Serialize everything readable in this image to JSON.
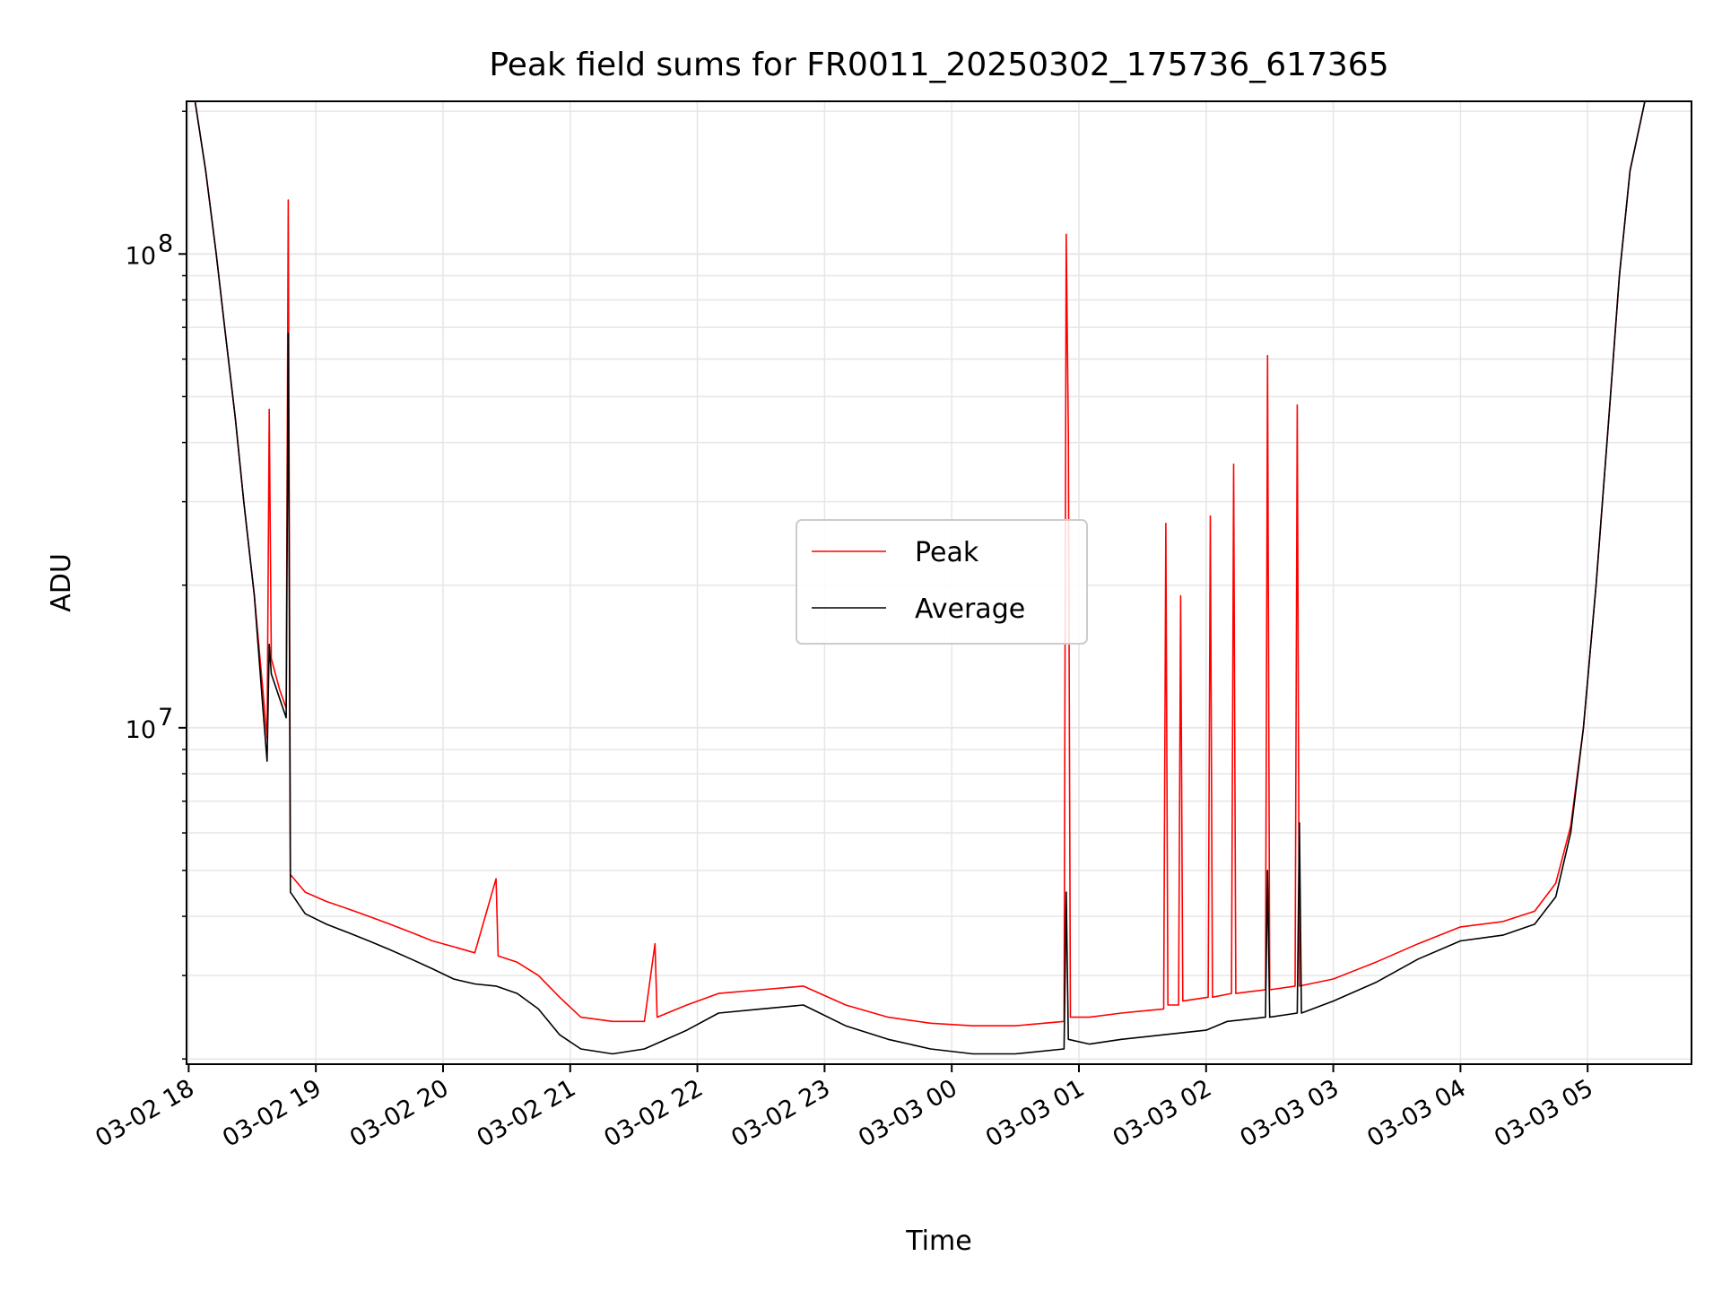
{
  "chart_data": {
    "type": "line",
    "title": "Peak field sums for FR0011_20250302_175736_617365",
    "xlabel": "Time",
    "ylabel": "ADU",
    "yscale": "log",
    "xlim": [
      "2025-03-02T17:59",
      "2025-03-03T05:49"
    ],
    "ylim": [
      1950000,
      210000000
    ],
    "grid": "major and minor",
    "legend_position": "center",
    "x_ticks": [
      {
        "t": "2025-03-02T18:00",
        "label": "03-02 18"
      },
      {
        "t": "2025-03-02T19:00",
        "label": "03-02 19"
      },
      {
        "t": "2025-03-02T20:00",
        "label": "03-02 20"
      },
      {
        "t": "2025-03-02T21:00",
        "label": "03-02 21"
      },
      {
        "t": "2025-03-02T22:00",
        "label": "03-02 22"
      },
      {
        "t": "2025-03-02T23:00",
        "label": "03-02 23"
      },
      {
        "t": "2025-03-03T00:00",
        "label": "03-03 00"
      },
      {
        "t": "2025-03-03T01:00",
        "label": "03-03 01"
      },
      {
        "t": "2025-03-03T02:00",
        "label": "03-03 02"
      },
      {
        "t": "2025-03-03T03:00",
        "label": "03-03 03"
      },
      {
        "t": "2025-03-03T04:00",
        "label": "03-03 04"
      },
      {
        "t": "2025-03-03T05:00",
        "label": "03-03 05"
      }
    ],
    "y_ticks": [
      {
        "value": 10000000,
        "base": "10",
        "exp": "7"
      },
      {
        "value": 100000000,
        "base": "10",
        "exp": "8"
      }
    ],
    "series": [
      {
        "name": "Peak",
        "color": "#ff0000",
        "points": [
          [
            "2025-03-02T18:03",
            210000000
          ],
          [
            "2025-03-02T18:08",
            150000000
          ],
          [
            "2025-03-02T18:13",
            100000000
          ],
          [
            "2025-03-02T18:17",
            70000000
          ],
          [
            "2025-03-02T18:22",
            45000000
          ],
          [
            "2025-03-02T18:26",
            30000000
          ],
          [
            "2025-03-02T18:31",
            19000000
          ],
          [
            "2025-03-02T18:35",
            12000000
          ],
          [
            "2025-03-02T18:37",
            9500000
          ],
          [
            "2025-03-02T18:38",
            47000000
          ],
          [
            "2025-03-02T18:39",
            14000000
          ],
          [
            "2025-03-02T18:43",
            12000000
          ],
          [
            "2025-03-02T18:46",
            11000000
          ],
          [
            "2025-03-02T18:47",
            130000000
          ],
          [
            "2025-03-02T18:48",
            4900000
          ],
          [
            "2025-03-02T18:55",
            4500000
          ],
          [
            "2025-03-02T19:05",
            4300000
          ],
          [
            "2025-03-02T19:15",
            4150000
          ],
          [
            "2025-03-02T19:25",
            4000000
          ],
          [
            "2025-03-02T19:35",
            3850000
          ],
          [
            "2025-03-02T19:45",
            3700000
          ],
          [
            "2025-03-02T19:55",
            3550000
          ],
          [
            "2025-03-02T20:05",
            3450000
          ],
          [
            "2025-03-02T20:15",
            3350000
          ],
          [
            "2025-03-02T20:25",
            4800000
          ],
          [
            "2025-03-02T20:26",
            3300000
          ],
          [
            "2025-03-02T20:35",
            3200000
          ],
          [
            "2025-03-02T20:45",
            3000000
          ],
          [
            "2025-03-02T20:55",
            2700000
          ],
          [
            "2025-03-02T21:05",
            2450000
          ],
          [
            "2025-03-02T21:20",
            2400000
          ],
          [
            "2025-03-02T21:35",
            2400000
          ],
          [
            "2025-03-02T21:40",
            3500000
          ],
          [
            "2025-03-02T21:41",
            2450000
          ],
          [
            "2025-03-02T21:55",
            2600000
          ],
          [
            "2025-03-02T22:10",
            2750000
          ],
          [
            "2025-03-02T22:30",
            2800000
          ],
          [
            "2025-03-02T22:50",
            2850000
          ],
          [
            "2025-03-02T23:10",
            2600000
          ],
          [
            "2025-03-02T23:30",
            2450000
          ],
          [
            "2025-03-02T23:50",
            2380000
          ],
          [
            "2025-03-03T00:10",
            2350000
          ],
          [
            "2025-03-03T00:30",
            2350000
          ],
          [
            "2025-03-03T00:53",
            2400000
          ],
          [
            "2025-03-03T00:54",
            110000000
          ],
          [
            "2025-03-03T00:55",
            42000000
          ],
          [
            "2025-03-03T00:56",
            2450000
          ],
          [
            "2025-03-03T01:05",
            2450000
          ],
          [
            "2025-03-03T01:20",
            2500000
          ],
          [
            "2025-03-03T01:40",
            2550000
          ],
          [
            "2025-03-03T01:41",
            27000000
          ],
          [
            "2025-03-03T01:42",
            2600000
          ],
          [
            "2025-03-03T01:47",
            2600000
          ],
          [
            "2025-03-03T01:48",
            19000000
          ],
          [
            "2025-03-03T01:49",
            2650000
          ],
          [
            "2025-03-03T02:01",
            2700000
          ],
          [
            "2025-03-03T02:02",
            28000000
          ],
          [
            "2025-03-03T02:03",
            2700000
          ],
          [
            "2025-03-03T02:12",
            2750000
          ],
          [
            "2025-03-03T02:13",
            36000000
          ],
          [
            "2025-03-03T02:14",
            2750000
          ],
          [
            "2025-03-03T02:28",
            2800000
          ],
          [
            "2025-03-03T02:29",
            61000000
          ],
          [
            "2025-03-03T02:30",
            2800000
          ],
          [
            "2025-03-03T02:42",
            2850000
          ],
          [
            "2025-03-03T02:43",
            48000000
          ],
          [
            "2025-03-03T02:44",
            2850000
          ],
          [
            "2025-03-03T03:00",
            2950000
          ],
          [
            "2025-03-03T03:20",
            3200000
          ],
          [
            "2025-03-03T03:40",
            3500000
          ],
          [
            "2025-03-03T04:00",
            3800000
          ],
          [
            "2025-03-03T04:20",
            3900000
          ],
          [
            "2025-03-03T04:35",
            4100000
          ],
          [
            "2025-03-03T04:45",
            4700000
          ],
          [
            "2025-03-03T04:52",
            6200000
          ],
          [
            "2025-03-03T04:58",
            10000000
          ],
          [
            "2025-03-03T05:04",
            20000000
          ],
          [
            "2025-03-03T05:10",
            45000000
          ],
          [
            "2025-03-03T05:15",
            90000000
          ],
          [
            "2025-03-03T05:20",
            150000000
          ],
          [
            "2025-03-03T05:27",
            210000000
          ]
        ]
      },
      {
        "name": "Average",
        "color": "#000000",
        "points": [
          [
            "2025-03-02T18:03",
            210000000
          ],
          [
            "2025-03-02T18:08",
            150000000
          ],
          [
            "2025-03-02T18:13",
            100000000
          ],
          [
            "2025-03-02T18:17",
            70000000
          ],
          [
            "2025-03-02T18:22",
            45000000
          ],
          [
            "2025-03-02T18:26",
            30000000
          ],
          [
            "2025-03-02T18:31",
            19000000
          ],
          [
            "2025-03-02T18:35",
            11000000
          ],
          [
            "2025-03-02T18:37",
            8500000
          ],
          [
            "2025-03-02T18:38",
            15000000
          ],
          [
            "2025-03-02T18:39",
            13000000
          ],
          [
            "2025-03-02T18:43",
            11500000
          ],
          [
            "2025-03-02T18:46",
            10500000
          ],
          [
            "2025-03-02T18:47",
            68000000
          ],
          [
            "2025-03-02T18:48",
            4500000
          ],
          [
            "2025-03-02T18:55",
            4050000
          ],
          [
            "2025-03-02T19:05",
            3850000
          ],
          [
            "2025-03-02T19:15",
            3700000
          ],
          [
            "2025-03-02T19:25",
            3550000
          ],
          [
            "2025-03-02T19:35",
            3400000
          ],
          [
            "2025-03-02T19:45",
            3250000
          ],
          [
            "2025-03-02T19:55",
            3100000
          ],
          [
            "2025-03-02T20:05",
            2950000
          ],
          [
            "2025-03-02T20:15",
            2880000
          ],
          [
            "2025-03-02T20:25",
            2850000
          ],
          [
            "2025-03-02T20:35",
            2750000
          ],
          [
            "2025-03-02T20:45",
            2550000
          ],
          [
            "2025-03-02T20:55",
            2250000
          ],
          [
            "2025-03-02T21:05",
            2100000
          ],
          [
            "2025-03-02T21:20",
            2050000
          ],
          [
            "2025-03-02T21:35",
            2100000
          ],
          [
            "2025-03-02T21:55",
            2300000
          ],
          [
            "2025-03-02T22:10",
            2500000
          ],
          [
            "2025-03-02T22:30",
            2550000
          ],
          [
            "2025-03-02T22:50",
            2600000
          ],
          [
            "2025-03-02T23:10",
            2350000
          ],
          [
            "2025-03-02T23:30",
            2200000
          ],
          [
            "2025-03-02T23:50",
            2100000
          ],
          [
            "2025-03-03T00:10",
            2050000
          ],
          [
            "2025-03-03T00:30",
            2050000
          ],
          [
            "2025-03-03T00:53",
            2100000
          ],
          [
            "2025-03-03T00:54",
            4500000
          ],
          [
            "2025-03-03T00:55",
            2200000
          ],
          [
            "2025-03-03T01:05",
            2150000
          ],
          [
            "2025-03-03T01:20",
            2200000
          ],
          [
            "2025-03-03T01:40",
            2250000
          ],
          [
            "2025-03-03T02:00",
            2300000
          ],
          [
            "2025-03-03T02:10",
            2400000
          ],
          [
            "2025-03-03T02:28",
            2450000
          ],
          [
            "2025-03-03T02:29",
            5000000
          ],
          [
            "2025-03-03T02:30",
            2450000
          ],
          [
            "2025-03-03T02:43",
            2500000
          ],
          [
            "2025-03-03T02:44",
            6300000
          ],
          [
            "2025-03-03T02:45",
            2500000
          ],
          [
            "2025-03-03T03:00",
            2650000
          ],
          [
            "2025-03-03T03:20",
            2900000
          ],
          [
            "2025-03-03T03:40",
            3250000
          ],
          [
            "2025-03-03T04:00",
            3550000
          ],
          [
            "2025-03-03T04:20",
            3650000
          ],
          [
            "2025-03-03T04:35",
            3850000
          ],
          [
            "2025-03-03T04:45",
            4400000
          ],
          [
            "2025-03-03T04:52",
            6000000
          ],
          [
            "2025-03-03T04:58",
            10000000
          ],
          [
            "2025-03-03T05:04",
            20000000
          ],
          [
            "2025-03-03T05:10",
            45000000
          ],
          [
            "2025-03-03T05:15",
            90000000
          ],
          [
            "2025-03-03T05:20",
            150000000
          ],
          [
            "2025-03-03T05:27",
            210000000
          ]
        ]
      }
    ]
  }
}
